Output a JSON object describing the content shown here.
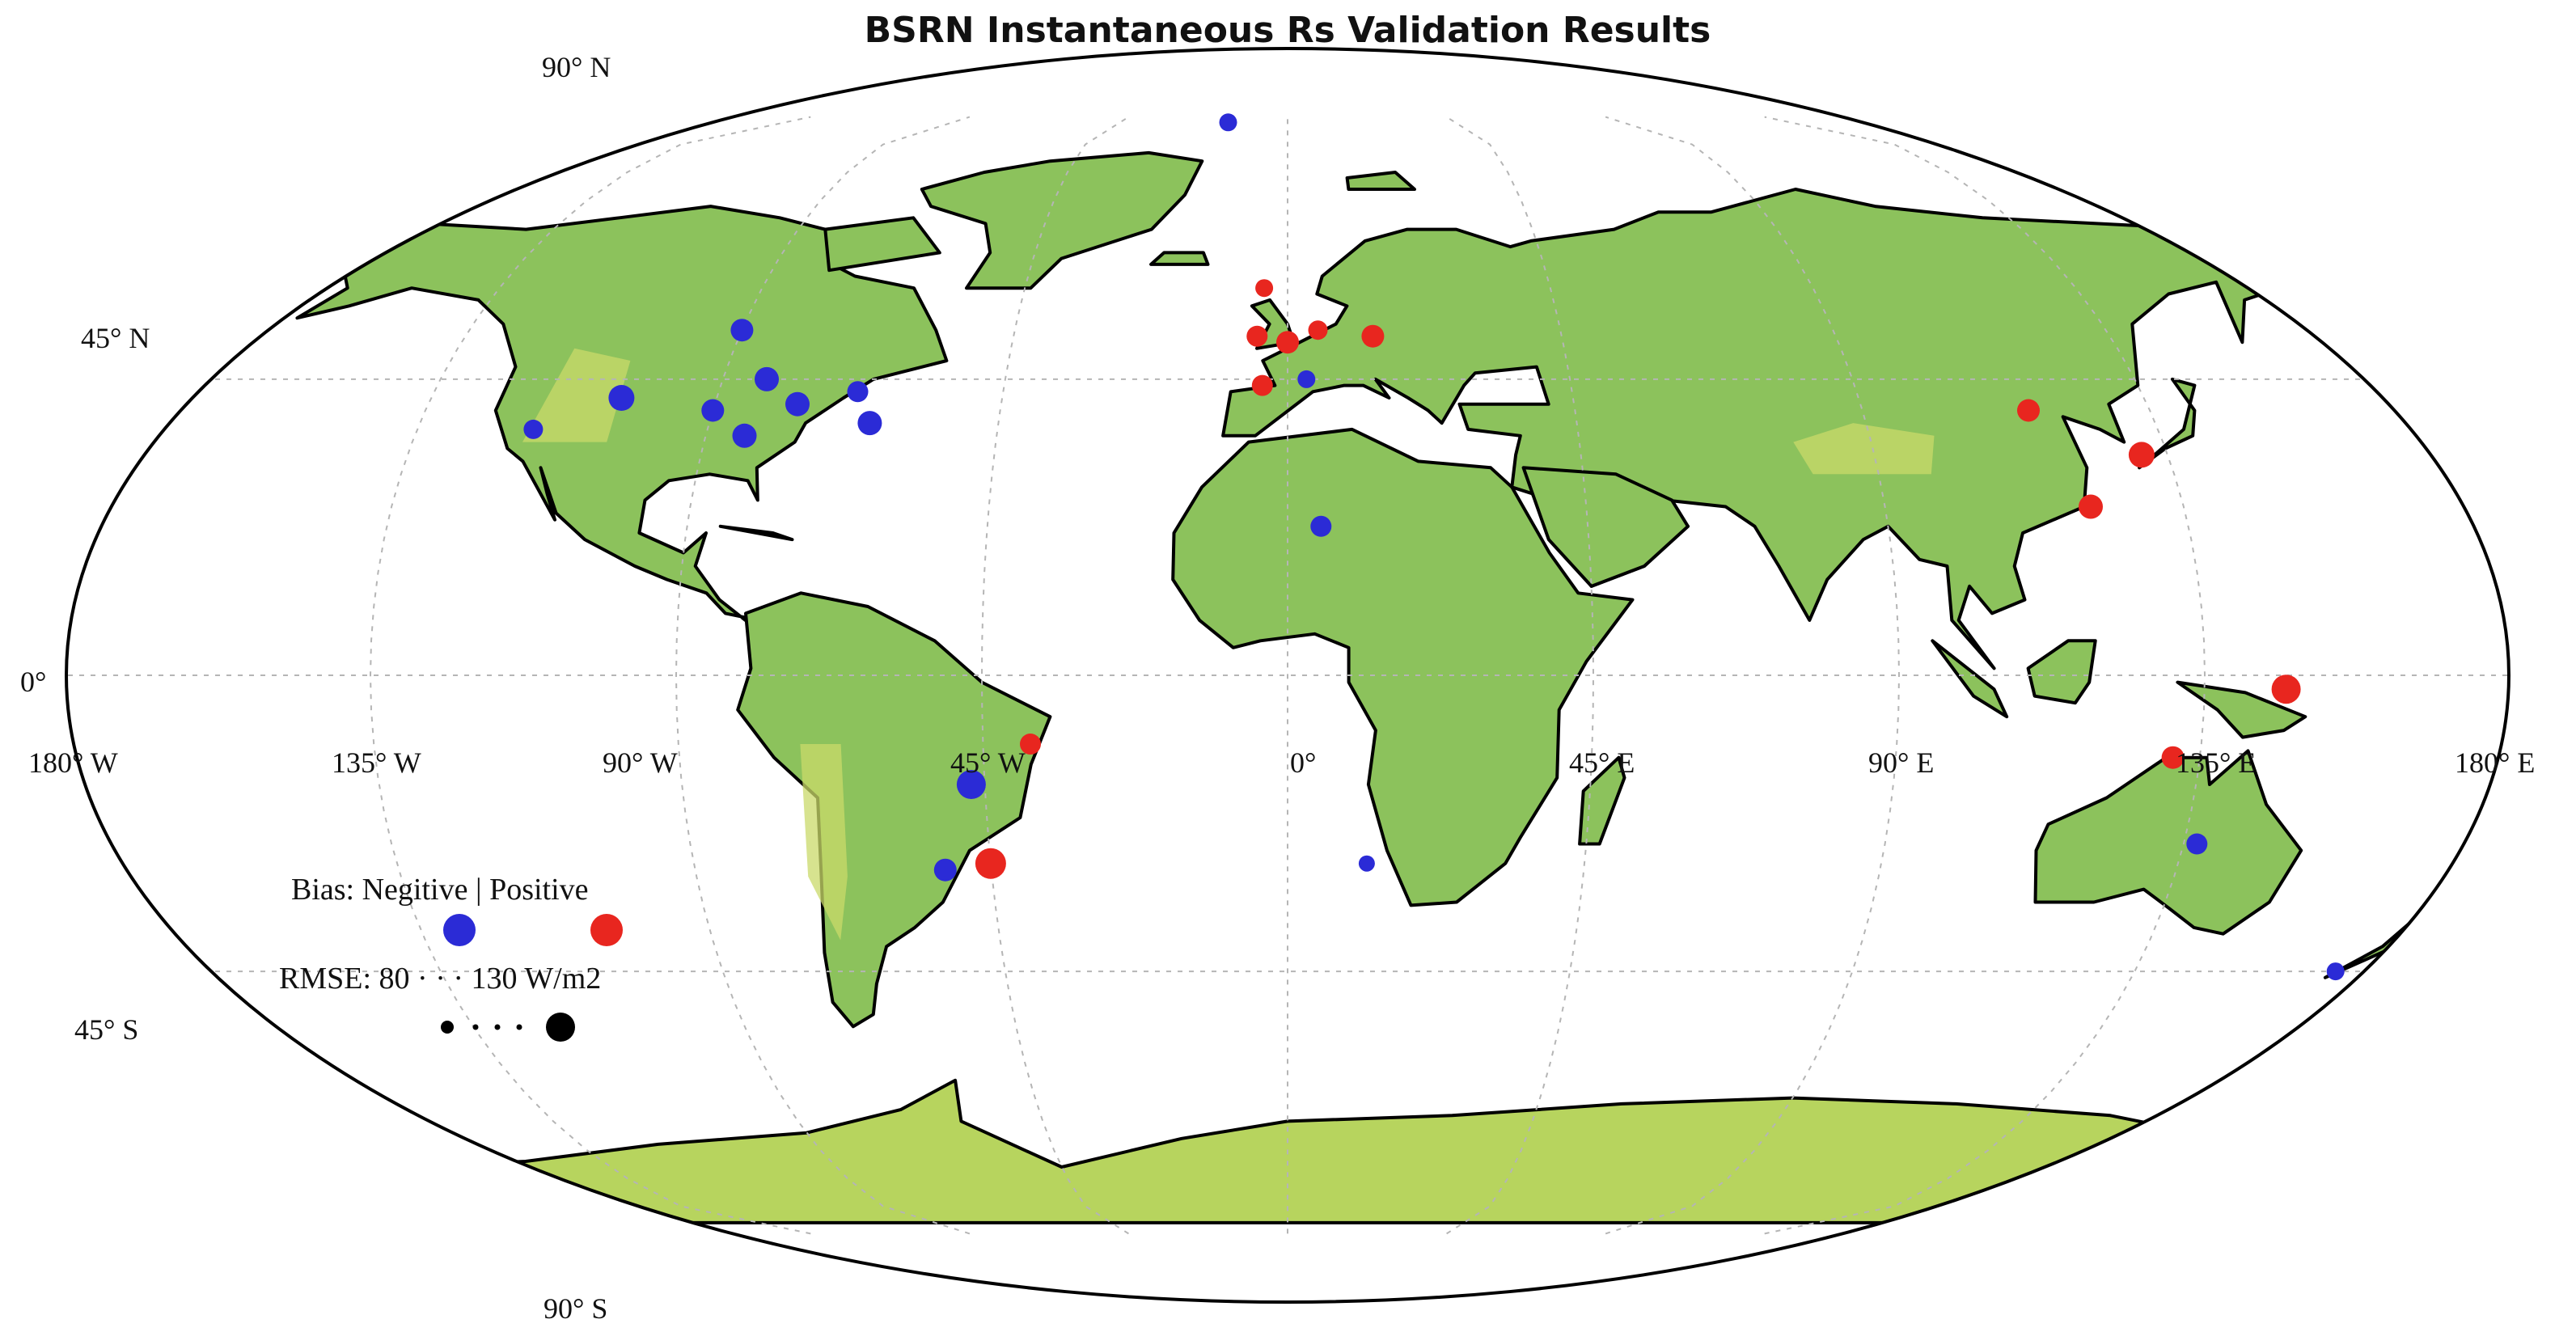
{
  "title": "BSRN Instantaneous Rs Validation Results",
  "graticule_labels": {
    "lat_90n": "90° N",
    "lat_45n": "45° N",
    "lat_0": "0°",
    "lat_45s": "45° S",
    "lat_90s": "90° S",
    "lon_180w": "180° W",
    "lon_135w": "135° W",
    "lon_90w": "90° W",
    "lon_45w": "45° W",
    "lon_0": "0°",
    "lon_45e": "45° E",
    "lon_90e": "90° E",
    "lon_135e": "135° E",
    "lon_180e": "180° E"
  },
  "legend": {
    "bias_text": "Bias: Negitive | Positive",
    "rmse_text": "RMSE: 80 · · · 130 W/m2",
    "negative_color": "#2b2bd6",
    "positive_color": "#e8261f",
    "rmse_min": 80,
    "rmse_max": 130
  },
  "colors": {
    "ocean": "#ffffff",
    "land": "#8cc25c",
    "highland": "#c9da6a",
    "coast": "#000000",
    "grid": "#b5b5b5"
  },
  "stations": [
    {
      "lon": -90,
      "lat": 53,
      "bias": "negative",
      "rmse": 100
    },
    {
      "lon": -105,
      "lat": 42,
      "bias": "negative",
      "rmse": 110
    },
    {
      "lon": -117,
      "lat": 37,
      "bias": "negative",
      "rmse": 90
    },
    {
      "lon": -90,
      "lat": 40,
      "bias": "negative",
      "rmse": 100
    },
    {
      "lon": -83,
      "lat": 45,
      "bias": "negative",
      "rmse": 105
    },
    {
      "lon": -77,
      "lat": 41,
      "bias": "negative",
      "rmse": 105
    },
    {
      "lon": -84,
      "lat": 36,
      "bias": "negative",
      "rmse": 105
    },
    {
      "lon": -68,
      "lat": 43,
      "bias": "negative",
      "rmse": 95
    },
    {
      "lon": -65,
      "lat": 38,
      "bias": "negative",
      "rmse": 105
    },
    {
      "lon": 3,
      "lat": 45,
      "bias": "negative",
      "rmse": 85
    },
    {
      "lon": 5,
      "lat": 22,
      "bias": "negative",
      "rmse": 95
    },
    {
      "lon": 12,
      "lat": -28,
      "bias": "negative",
      "rmse": 80
    },
    {
      "lon": -47,
      "lat": -16,
      "bias": "negative",
      "rmse": 120
    },
    {
      "lon": -52,
      "lat": -29,
      "bias": "negative",
      "rmse": 100
    },
    {
      "lon": 137,
      "lat": -25,
      "bias": "negative",
      "rmse": 95
    },
    {
      "lon": 167,
      "lat": -45,
      "bias": "negative",
      "rmse": 85
    },
    {
      "lon": -15,
      "lat": 89,
      "bias": "negative",
      "rmse": 85
    },
    {
      "lon": -4,
      "lat": 60,
      "bias": "positive",
      "rmse": 85
    },
    {
      "lon": -5,
      "lat": 52,
      "bias": "positive",
      "rmse": 95
    },
    {
      "lon": 0,
      "lat": 51,
      "bias": "positive",
      "rmse": 100
    },
    {
      "lon": 5,
      "lat": 53,
      "bias": "positive",
      "rmse": 90
    },
    {
      "lon": 14,
      "lat": 52,
      "bias": "positive",
      "rmse": 100
    },
    {
      "lon": -4,
      "lat": 44,
      "bias": "positive",
      "rmse": 95
    },
    {
      "lon": 116,
      "lat": 40,
      "bias": "positive",
      "rmse": 100
    },
    {
      "lon": 131,
      "lat": 33,
      "bias": "positive",
      "rmse": 110
    },
    {
      "lon": 121,
      "lat": 25,
      "bias": "positive",
      "rmse": 105
    },
    {
      "lon": 147,
      "lat": -2,
      "bias": "positive",
      "rmse": 120
    },
    {
      "lon": 131,
      "lat": -12,
      "bias": "positive",
      "rmse": 100
    },
    {
      "lon": -38,
      "lat": -10,
      "bias": "positive",
      "rmse": 95
    },
    {
      "lon": -45,
      "lat": -28,
      "bias": "positive",
      "rmse": 125
    }
  ]
}
